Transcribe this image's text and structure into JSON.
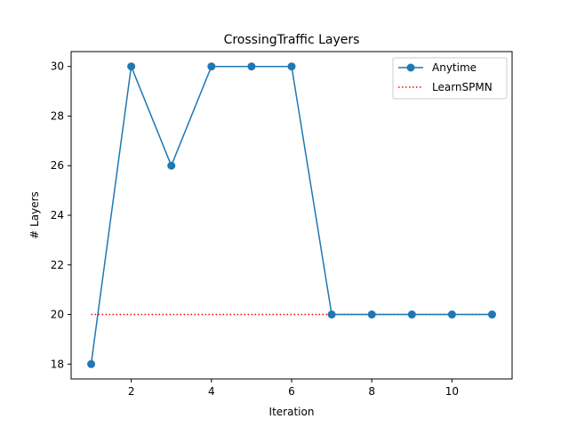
{
  "chart_data": {
    "type": "line",
    "title": "CrossingTraffic Layers",
    "xlabel": "Iteration",
    "ylabel": "# Layers",
    "xlim": [
      0.5,
      11.5
    ],
    "ylim": [
      17.4,
      30.6
    ],
    "xticks": [
      2,
      4,
      6,
      8,
      10
    ],
    "yticks": [
      18,
      20,
      22,
      24,
      26,
      28,
      30
    ],
    "grid": false,
    "legend_position": "top-right",
    "series": [
      {
        "name": "Anytime",
        "style": "solid-with-markers",
        "color": "#1f77b4",
        "x": [
          1,
          2,
          3,
          4,
          5,
          6,
          7,
          8,
          9,
          10,
          11
        ],
        "values": [
          18,
          30,
          26,
          30,
          30,
          30,
          20,
          20,
          20,
          20,
          20
        ]
      },
      {
        "name": "LearnSPMN",
        "style": "dotted",
        "color": "#ff0000",
        "x": [
          1,
          11
        ],
        "values": [
          20,
          20
        ]
      }
    ]
  }
}
